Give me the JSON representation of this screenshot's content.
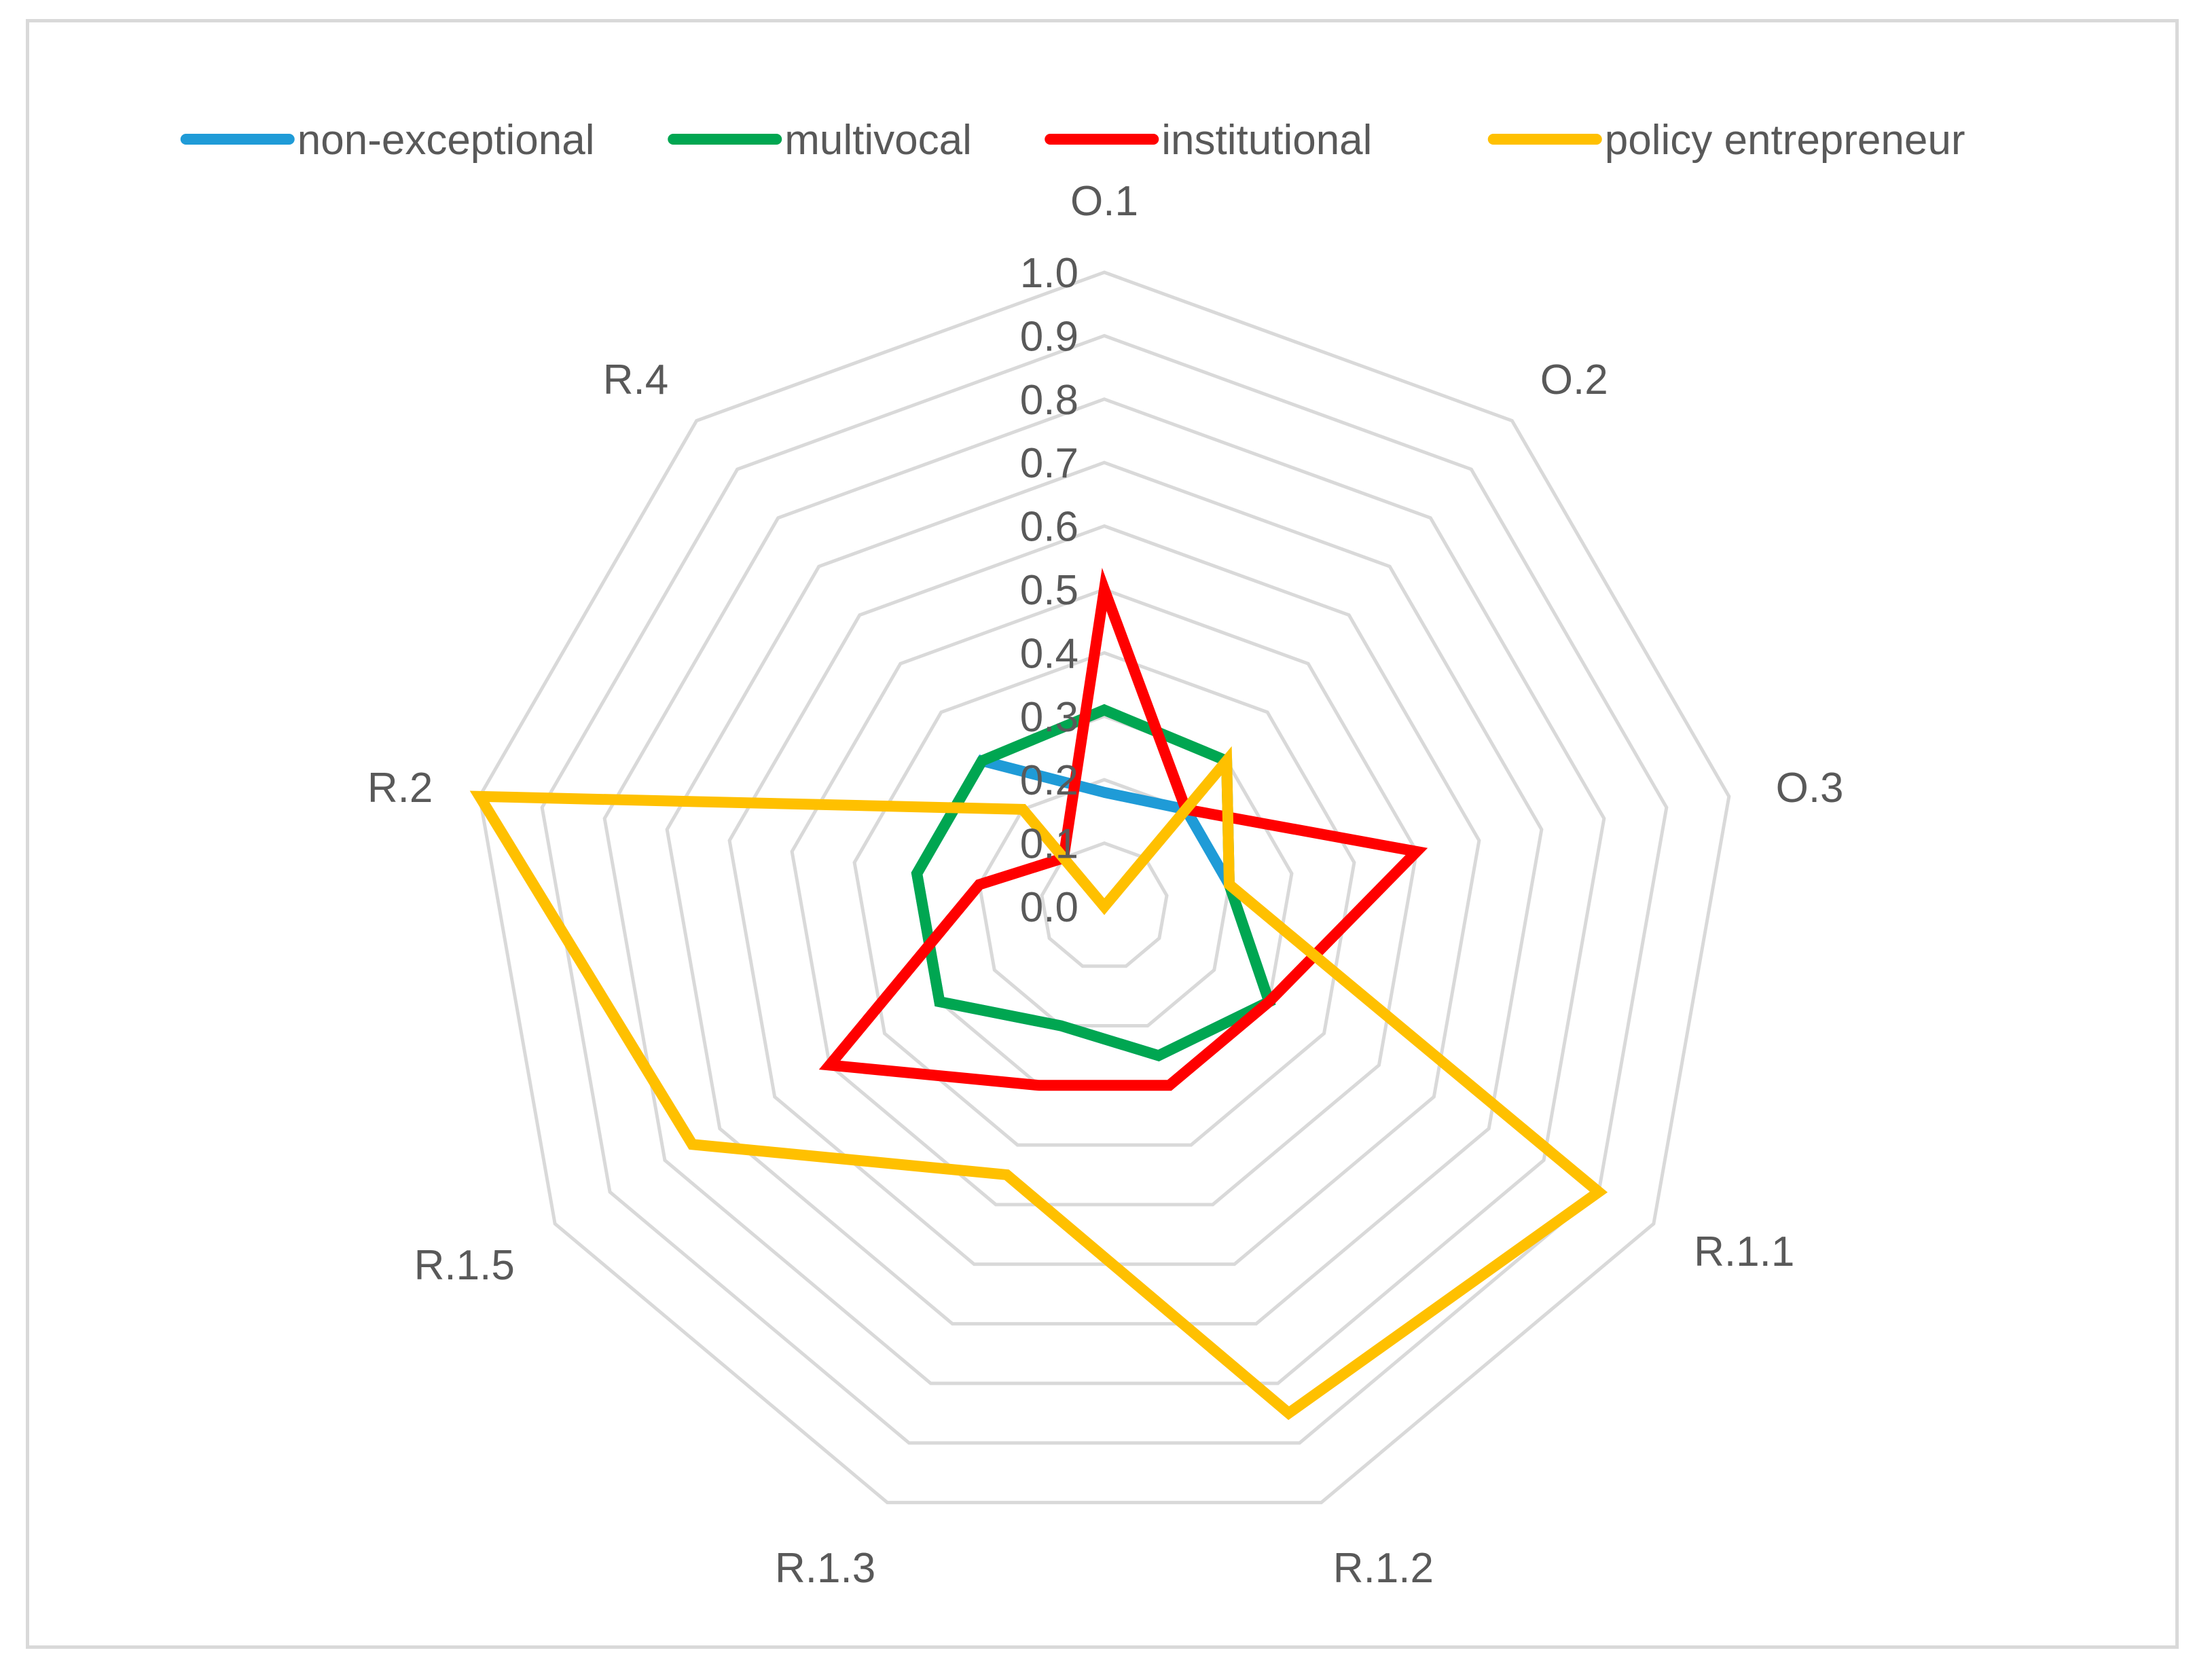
{
  "chart_data": {
    "type": "radar",
    "title": "",
    "axes": [
      "O.1",
      "O.2",
      "O.3",
      "R.1.1",
      "R.1.2",
      "R.1.3",
      "R.1.5",
      "R.2",
      "R.4"
    ],
    "rlim": [
      0.0,
      1.0
    ],
    "ticks": [
      "0.0",
      "0.1",
      "0.2",
      "0.3",
      "0.4",
      "0.5",
      "0.6",
      "0.7",
      "0.8",
      "0.9",
      "1.0"
    ],
    "grid": true,
    "legend_position": "top",
    "series": [
      {
        "name": "non-exceptional",
        "color": "#1f9bd7",
        "values": [
          0.18,
          0.2,
          0.2,
          0.3,
          0.25,
          0.2,
          0.3,
          0.3,
          0.3
        ]
      },
      {
        "name": "multivocal",
        "color": "#00a651",
        "values": [
          0.31,
          0.3,
          0.2,
          0.3,
          0.25,
          0.2,
          0.3,
          0.3,
          0.3
        ]
      },
      {
        "name": "institutional",
        "color": "#ff0000",
        "values": [
          0.5,
          0.2,
          0.5,
          0.3,
          0.3,
          0.3,
          0.5,
          0.2,
          0.1
        ]
      },
      {
        "name": "policy entrepreneur",
        "color": "#ffc000",
        "values": [
          0.0,
          0.3,
          0.2,
          0.9,
          0.85,
          0.45,
          0.75,
          1.0,
          0.2
        ]
      }
    ]
  }
}
